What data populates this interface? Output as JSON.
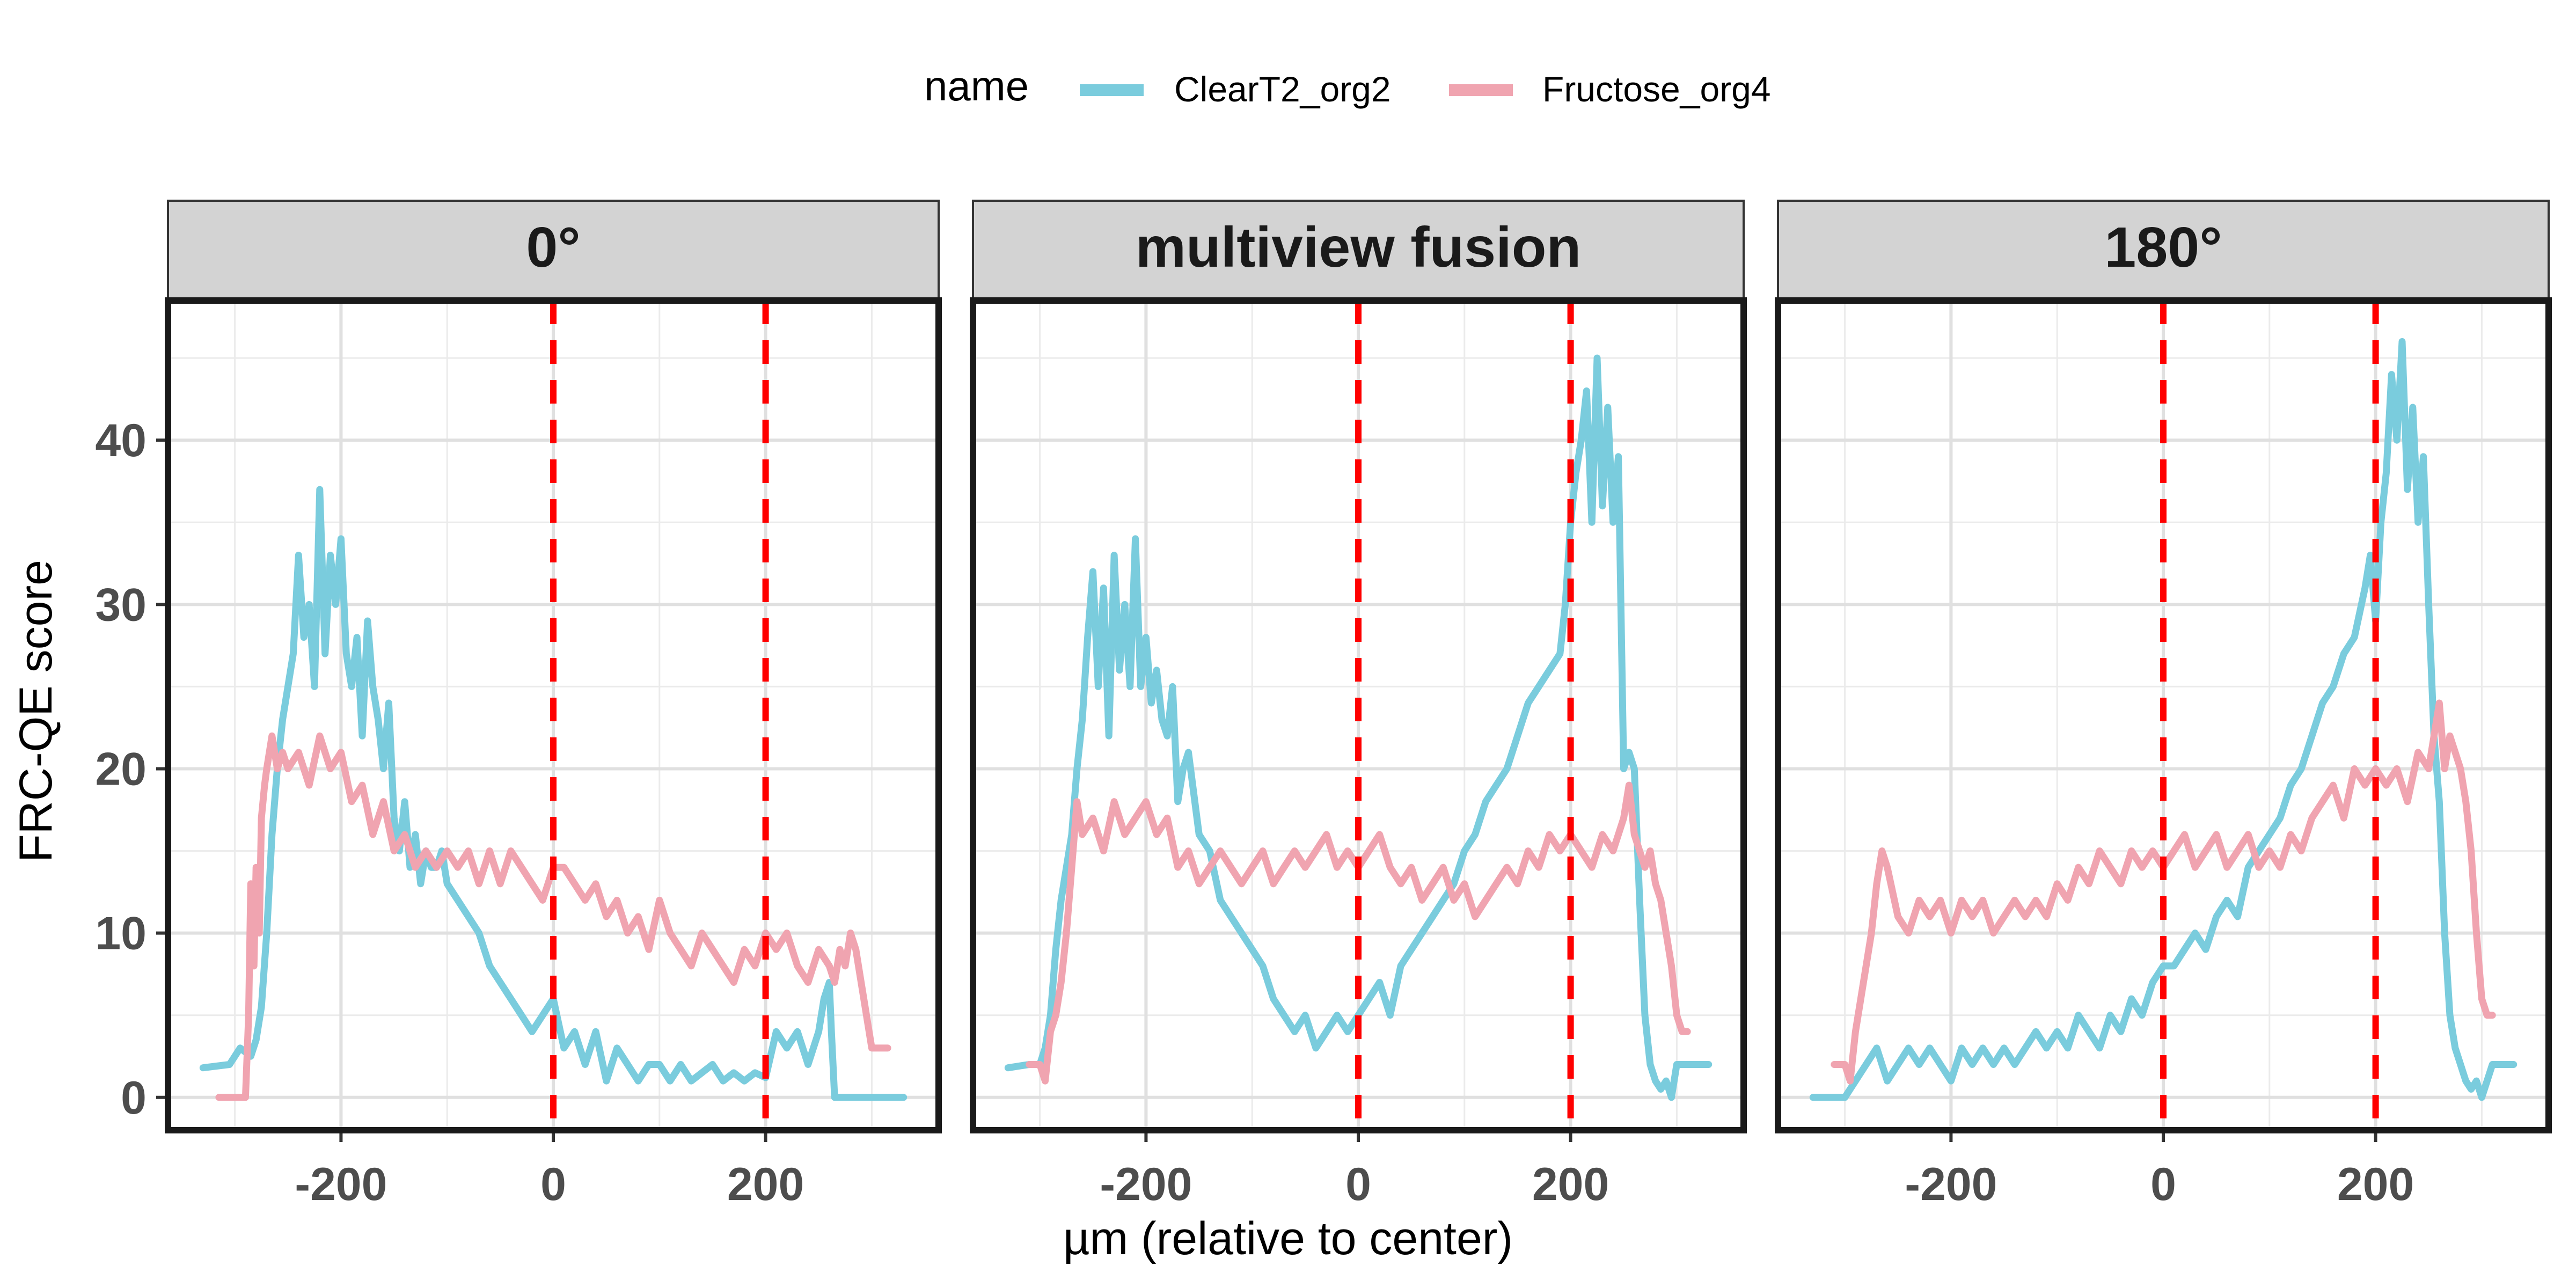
{
  "legend": {
    "title": "name",
    "entries": [
      {
        "name": "ClearT2_org2",
        "color": "#7ACCDD"
      },
      {
        "name": "Fructose_org4",
        "color": "#F0A4B0"
      }
    ]
  },
  "axes": {
    "xlabel": "µm (relative to center)",
    "ylabel": "FRC-QE score",
    "xlim": [
      -363,
      363
    ],
    "ylim": [
      -2,
      48.5
    ],
    "xticks": [
      -200,
      0,
      200
    ],
    "yticks": [
      0,
      10,
      20,
      30,
      40
    ],
    "reference_lines": [
      0,
      200
    ],
    "reference_color": "#FF0000"
  },
  "chart_data": [
    {
      "type": "line",
      "panel": "0°",
      "xlabel": "µm (relative to center)",
      "ylabel": "FRC-QE score",
      "series": [
        {
          "name": "ClearT2_org2",
          "color": "#7ACCDD",
          "x": [
            -330,
            -305,
            -295,
            -285,
            -280,
            -275,
            -270,
            -265,
            -260,
            -255,
            -250,
            -245,
            -240,
            -235,
            -230,
            -225,
            -220,
            -215,
            -210,
            -205,
            -200,
            -195,
            -190,
            -185,
            -180,
            -175,
            -170,
            -165,
            -160,
            -155,
            -150,
            -145,
            -140,
            -135,
            -130,
            -125,
            -120,
            -115,
            -110,
            -105,
            -100,
            -90,
            -80,
            -70,
            -60,
            -50,
            -40,
            -30,
            -20,
            -10,
            0,
            10,
            20,
            30,
            40,
            50,
            60,
            70,
            80,
            90,
            100,
            110,
            120,
            130,
            140,
            150,
            160,
            170,
            180,
            190,
            200,
            210,
            220,
            230,
            240,
            250,
            255,
            260,
            262,
            265,
            270,
            280,
            300,
            330
          ],
          "y": [
            1.8,
            2,
            3,
            2.5,
            3.5,
            5.5,
            10,
            16,
            20,
            23,
            25,
            27,
            33,
            28,
            30,
            25,
            37,
            27,
            33,
            30,
            34,
            27,
            25,
            28,
            22,
            29,
            25,
            23,
            20,
            24,
            17,
            15,
            18,
            14,
            16,
            13,
            15,
            14,
            14,
            15,
            13,
            12,
            11,
            10,
            8,
            7,
            6,
            5,
            4,
            5,
            6,
            3,
            4,
            2,
            4,
            1,
            3,
            2,
            1,
            2,
            2,
            1,
            2,
            1,
            1.5,
            2,
            1,
            1.5,
            1,
            1.5,
            1.2,
            4,
            3,
            4,
            2,
            4,
            6,
            7,
            4,
            0,
            0,
            0,
            0,
            0
          ]
        },
        {
          "name": "Fructose_org4",
          "color": "#F0A4B0",
          "x": [
            -315,
            -300,
            -290,
            -287,
            -285,
            -282,
            -280,
            -277,
            -275,
            -272,
            -270,
            -265,
            -260,
            -255,
            -250,
            -240,
            -230,
            -220,
            -210,
            -200,
            -190,
            -180,
            -170,
            -160,
            -150,
            -140,
            -130,
            -120,
            -110,
            -100,
            -90,
            -80,
            -70,
            -60,
            -50,
            -40,
            -30,
            -20,
            -10,
            0,
            10,
            20,
            30,
            40,
            50,
            60,
            70,
            80,
            90,
            100,
            110,
            120,
            130,
            140,
            150,
            160,
            170,
            180,
            190,
            200,
            210,
            220,
            230,
            240,
            250,
            260,
            265,
            270,
            275,
            280,
            285,
            290,
            295,
            300,
            305,
            310,
            315
          ],
          "y": [
            0,
            0,
            0,
            5,
            13,
            8,
            14,
            10,
            17,
            19,
            20,
            22,
            20,
            21,
            20,
            21,
            19,
            22,
            20,
            21,
            18,
            19,
            16,
            18,
            15,
            16,
            14,
            15,
            14,
            15,
            14,
            15,
            13,
            15,
            13,
            15,
            14,
            13,
            12,
            14,
            14,
            13,
            12,
            13,
            11,
            12,
            10,
            11,
            9,
            12,
            10,
            9,
            8,
            10,
            9,
            8,
            7,
            9,
            8,
            10,
            9,
            10,
            8,
            7,
            9,
            8,
            7,
            9,
            8,
            10,
            9,
            7,
            5,
            3,
            3,
            3,
            3
          ]
        }
      ]
    },
    {
      "type": "line",
      "panel": "multiview fusion",
      "xlabel": "µm (relative to center)",
      "ylabel": "FRC-QE score",
      "series": [
        {
          "name": "ClearT2_org2",
          "color": "#7ACCDD",
          "x": [
            -330,
            -310,
            -300,
            -295,
            -290,
            -285,
            -280,
            -275,
            -270,
            -265,
            -260,
            -255,
            -250,
            -245,
            -240,
            -235,
            -230,
            -225,
            -220,
            -215,
            -210,
            -205,
            -200,
            -195,
            -190,
            -185,
            -180,
            -175,
            -170,
            -165,
            -160,
            -150,
            -140,
            -130,
            -120,
            -110,
            -100,
            -90,
            -80,
            -70,
            -60,
            -50,
            -40,
            -30,
            -20,
            -10,
            0,
            10,
            20,
            30,
            40,
            50,
            60,
            70,
            80,
            90,
            100,
            110,
            120,
            130,
            140,
            150,
            160,
            170,
            180,
            190,
            195,
            200,
            205,
            210,
            215,
            220,
            225,
            230,
            235,
            240,
            245,
            250,
            255,
            260,
            265,
            270,
            275,
            280,
            285,
            290,
            295,
            300,
            310,
            330
          ],
          "y": [
            1.8,
            2,
            2,
            3,
            5,
            9,
            12,
            14,
            16,
            20,
            23,
            28,
            32,
            25,
            31,
            22,
            33,
            26,
            30,
            25,
            34,
            25,
            28,
            24,
            26,
            23,
            22,
            25,
            18,
            20,
            21,
            16,
            15,
            12,
            11,
            10,
            9,
            8,
            6,
            5,
            4,
            5,
            3,
            4,
            5,
            4,
            5,
            6,
            7,
            5,
            8,
            9,
            10,
            11,
            12,
            13,
            15,
            16,
            18,
            19,
            20,
            22,
            24,
            25,
            26,
            27,
            30,
            35,
            38,
            40,
            43,
            35,
            45,
            36,
            42,
            35,
            39,
            20,
            21,
            20,
            12,
            5,
            2,
            1,
            0.5,
            1,
            0,
            2,
            2,
            2
          ]
        },
        {
          "name": "Fructose_org4",
          "color": "#F0A4B0",
          "x": [
            -310,
            -300,
            -295,
            -290,
            -285,
            -280,
            -275,
            -270,
            -265,
            -260,
            -250,
            -240,
            -230,
            -220,
            -210,
            -200,
            -190,
            -180,
            -170,
            -160,
            -150,
            -140,
            -130,
            -120,
            -110,
            -100,
            -90,
            -80,
            -70,
            -60,
            -50,
            -40,
            -30,
            -20,
            -10,
            0,
            10,
            20,
            30,
            40,
            50,
            60,
            70,
            80,
            90,
            100,
            110,
            120,
            130,
            140,
            150,
            160,
            170,
            180,
            190,
            200,
            210,
            220,
            230,
            240,
            250,
            255,
            260,
            265,
            270,
            275,
            280,
            285,
            290,
            295,
            300,
            305,
            310
          ],
          "y": [
            2,
            2,
            1,
            4,
            5,
            7,
            10,
            14,
            18,
            16,
            17,
            15,
            18,
            16,
            17,
            18,
            16,
            17,
            14,
            15,
            13,
            14,
            15,
            14,
            13,
            14,
            15,
            13,
            14,
            15,
            14,
            15,
            16,
            14,
            15,
            14,
            15,
            16,
            14,
            13,
            14,
            12,
            13,
            14,
            12,
            13,
            11,
            12,
            13,
            14,
            13,
            15,
            14,
            16,
            15,
            16,
            15,
            14,
            16,
            15,
            17,
            19,
            16,
            15,
            14,
            15,
            13,
            12,
            10,
            8,
            5,
            4,
            4
          ]
        }
      ]
    },
    {
      "type": "line",
      "panel": "180°",
      "xlabel": "µm (relative to center)",
      "ylabel": "FRC-QE score",
      "series": [
        {
          "name": "ClearT2_org2",
          "color": "#7ACCDD",
          "x": [
            -330,
            -305,
            -300,
            -290,
            -280,
            -270,
            -260,
            -250,
            -240,
            -230,
            -220,
            -210,
            -200,
            -190,
            -180,
            -170,
            -160,
            -150,
            -140,
            -130,
            -120,
            -110,
            -100,
            -90,
            -80,
            -70,
            -60,
            -50,
            -40,
            -30,
            -20,
            -10,
            0,
            10,
            20,
            30,
            40,
            50,
            60,
            70,
            80,
            90,
            100,
            110,
            120,
            130,
            140,
            150,
            160,
            170,
            180,
            190,
            195,
            200,
            205,
            210,
            215,
            220,
            225,
            230,
            235,
            240,
            245,
            250,
            255,
            260,
            265,
            270,
            275,
            280,
            285,
            290,
            295,
            300,
            310,
            330
          ],
          "y": [
            0,
            0,
            0,
            1,
            2,
            3,
            1,
            2,
            3,
            2,
            3,
            2,
            1,
            3,
            2,
            3,
            2,
            3,
            2,
            3,
            4,
            3,
            4,
            3,
            5,
            4,
            3,
            5,
            4,
            6,
            5,
            7,
            8,
            8,
            9,
            10,
            9,
            11,
            12,
            11,
            14,
            15,
            16,
            17,
            19,
            20,
            22,
            24,
            25,
            27,
            28,
            31,
            33,
            29,
            35,
            38,
            44,
            40,
            46,
            37,
            42,
            35,
            39,
            30,
            22,
            18,
            10,
            5,
            3,
            2,
            1,
            0.5,
            1,
            0,
            2,
            2
          ]
        },
        {
          "name": "Fructose_org4",
          "color": "#F0A4B0",
          "x": [
            -310,
            -300,
            -295,
            -290,
            -285,
            -280,
            -275,
            -270,
            -265,
            -260,
            -250,
            -240,
            -230,
            -220,
            -210,
            -200,
            -190,
            -180,
            -170,
            -160,
            -150,
            -140,
            -130,
            -120,
            -110,
            -100,
            -90,
            -80,
            -70,
            -60,
            -50,
            -40,
            -30,
            -20,
            -10,
            0,
            10,
            20,
            30,
            40,
            50,
            60,
            70,
            80,
            90,
            100,
            110,
            120,
            130,
            140,
            150,
            160,
            170,
            180,
            190,
            200,
            210,
            220,
            230,
            240,
            250,
            255,
            260,
            265,
            270,
            275,
            280,
            285,
            290,
            295,
            300,
            305,
            310
          ],
          "y": [
            2,
            2,
            1,
            4,
            6,
            8,
            10,
            13,
            15,
            14,
            11,
            10,
            12,
            11,
            12,
            10,
            12,
            11,
            12,
            10,
            11,
            12,
            11,
            12,
            11,
            13,
            12,
            14,
            13,
            15,
            14,
            13,
            15,
            14,
            15,
            14,
            15,
            16,
            14,
            15,
            16,
            14,
            15,
            16,
            14,
            15,
            14,
            16,
            15,
            17,
            18,
            19,
            17,
            20,
            19,
            20,
            19,
            20,
            18,
            21,
            20,
            22,
            24,
            20,
            22,
            21,
            20,
            18,
            15,
            10,
            6,
            5,
            5
          ]
        }
      ]
    }
  ]
}
